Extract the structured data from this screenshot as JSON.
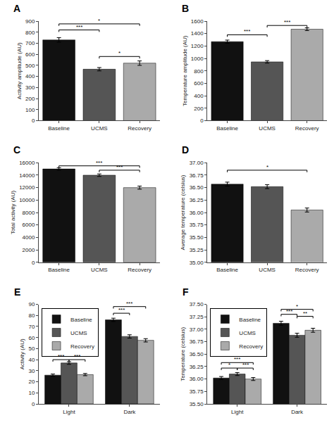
{
  "chart_data": [
    {
      "type": "bar",
      "title": "A",
      "categories": [
        "Baseline",
        "UCMS",
        "Recovery"
      ],
      "values": [
        730,
        465,
        520
      ],
      "errors": [
        20,
        15,
        20
      ],
      "colors": [
        "#111111",
        "#555555",
        "#aaaaaa"
      ],
      "ylabel": "Activity amplitude (AU)",
      "ylim": [
        0,
        900
      ],
      "yticks": [
        0,
        100,
        200,
        300,
        400,
        500,
        600,
        700,
        800,
        900
      ],
      "grid": false,
      "annotations": [
        {
          "from": "Baseline",
          "to": "UCMS",
          "y": 820,
          "label": "***"
        },
        {
          "from": "Baseline",
          "to": "Recovery",
          "y": 875,
          "label": "*"
        },
        {
          "from": "UCMS",
          "to": "Recovery",
          "y": 580,
          "label": "*"
        }
      ]
    },
    {
      "type": "bar",
      "title": "B",
      "categories": [
        "Baseline",
        "UCMS",
        "Recovery"
      ],
      "values": [
        1270,
        945,
        1470
      ],
      "errors": [
        25,
        20,
        22
      ],
      "colors": [
        "#111111",
        "#555555",
        "#aaaaaa"
      ],
      "ylabel": "Temperature amplitude (AU)",
      "ylim": [
        0,
        1600
      ],
      "yticks": [
        0,
        200,
        400,
        600,
        800,
        1000,
        1200,
        1400,
        1600
      ],
      "grid": false,
      "annotations": [
        {
          "from": "Baseline",
          "to": "UCMS",
          "y": 1380,
          "label": "***"
        },
        {
          "from": "UCMS",
          "to": "Recovery",
          "y": 1530,
          "label": "***"
        }
      ]
    },
    {
      "type": "bar",
      "title": "C",
      "categories": [
        "Baseline",
        "UCMS",
        "Recovery"
      ],
      "values": [
        15000,
        14000,
        12000
      ],
      "errors": [
        200,
        200,
        250
      ],
      "colors": [
        "#111111",
        "#555555",
        "#aaaaaa"
      ],
      "ylabel": "Total activity (AU)",
      "ylim": [
        0,
        16000
      ],
      "yticks": [
        0,
        2000,
        4000,
        6000,
        8000,
        10000,
        12000,
        14000,
        16000
      ],
      "grid": false,
      "annotations": [
        {
          "from": "Baseline",
          "to": "Recovery",
          "y": 15500,
          "label": "***"
        },
        {
          "from": "UCMS",
          "to": "Recovery",
          "y": 14800,
          "label": "***"
        }
      ]
    },
    {
      "type": "bar",
      "title": "D",
      "categories": [
        "Baseline",
        "UCMS",
        "Recovery"
      ],
      "values": [
        36.57,
        36.52,
        36.05
      ],
      "errors": [
        0.04,
        0.04,
        0.04
      ],
      "colors": [
        "#111111",
        "#555555",
        "#aaaaaa"
      ],
      "ylabel": "Average temperature (celsius)",
      "ylim": [
        35.0,
        37.0
      ],
      "yticks": [
        {
          "value": 35.0,
          "label": "35.00"
        },
        35.25,
        {
          "value": 35.5,
          "label": "35.50"
        },
        35.75,
        {
          "value": 36.0,
          "label": "36.00"
        },
        36.25,
        {
          "value": 36.5,
          "label": "36.50"
        },
        36.75,
        {
          "value": 37.0,
          "label": "37.00"
        }
      ],
      "grid": false,
      "annotations": [
        {
          "from": "Baseline",
          "to": "Recovery",
          "y": 36.85,
          "label": "*"
        }
      ]
    },
    {
      "type": "bar",
      "title": "E",
      "categories": [
        "Light",
        "Dark"
      ],
      "series": [
        {
          "name": "Baseline",
          "color": "#111111",
          "values": [
            26,
            76
          ],
          "errors": [
            1.0,
            1.5
          ]
        },
        {
          "name": "UCMS",
          "color": "#555555",
          "values": [
            37,
            61
          ],
          "errors": [
            1.2,
            1.5
          ]
        },
        {
          "name": "Recovery",
          "color": "#aaaaaa",
          "values": [
            26.5,
            57.5
          ],
          "errors": [
            1.0,
            1.5
          ]
        }
      ],
      "ylabel": "Activity (AU)",
      "ylim": [
        0,
        90
      ],
      "yticks": [
        0,
        10,
        20,
        30,
        40,
        50,
        60,
        70,
        80,
        90
      ],
      "grid": false,
      "legend": "upper left",
      "annotations": [
        {
          "group": "Light",
          "from": "Baseline",
          "to": "UCMS",
          "y": 40,
          "label": "***"
        },
        {
          "group": "Light",
          "from": "UCMS",
          "to": "Recovery",
          "y": 40,
          "label": "***"
        },
        {
          "group": "Dark",
          "from": "Baseline",
          "to": "UCMS",
          "y": 82,
          "label": "***"
        },
        {
          "group": "Dark",
          "from": "Baseline",
          "to": "Recovery",
          "y": 88,
          "label": "***"
        }
      ]
    },
    {
      "type": "bar",
      "title": "F",
      "categories": [
        "Light",
        "Dark"
      ],
      "series": [
        {
          "name": "Baseline",
          "color": "#111111",
          "values": [
            36.02,
            37.12
          ],
          "errors": [
            0.03,
            0.04
          ]
        },
        {
          "name": "UCMS",
          "color": "#555555",
          "values": [
            36.1,
            36.88
          ],
          "errors": [
            0.03,
            0.04
          ]
        },
        {
          "name": "Recovery",
          "color": "#aaaaaa",
          "values": [
            36.0,
            36.98
          ],
          "errors": [
            0.03,
            0.04
          ]
        }
      ],
      "ylabel": "Temperature (celsius)",
      "ylim": [
        35.5,
        37.5
      ],
      "yticks": [
        {
          "value": 35.5,
          "label": "35.50"
        },
        35.75,
        {
          "value": 36.0,
          "label": "36.00"
        },
        36.25,
        {
          "value": 36.5,
          "label": "36.50"
        },
        36.75,
        {
          "value": 37.0,
          "label": "37.00"
        },
        37.25,
        {
          "value": 37.5,
          "label": "37.50"
        }
      ],
      "grid": false,
      "legend": "upper left",
      "annotations": [
        {
          "group": "Light",
          "from": "Baseline",
          "to": "UCMS",
          "y": 36.22,
          "label": "*"
        },
        {
          "group": "Light",
          "from": "UCMS",
          "to": "Recovery",
          "y": 36.22,
          "label": "***"
        },
        {
          "group": "Light",
          "from": "Baseline",
          "to": "Recovery",
          "y": 36.33,
          "label": "***"
        },
        {
          "group": "Dark",
          "from": "Baseline",
          "to": "UCMS",
          "y": 37.3,
          "label": "***"
        },
        {
          "group": "Dark",
          "from": "UCMS",
          "to": "Recovery",
          "y": 37.26,
          "label": "**"
        },
        {
          "group": "Dark",
          "from": "Baseline",
          "to": "Recovery",
          "y": 37.4,
          "label": "*"
        }
      ]
    }
  ]
}
